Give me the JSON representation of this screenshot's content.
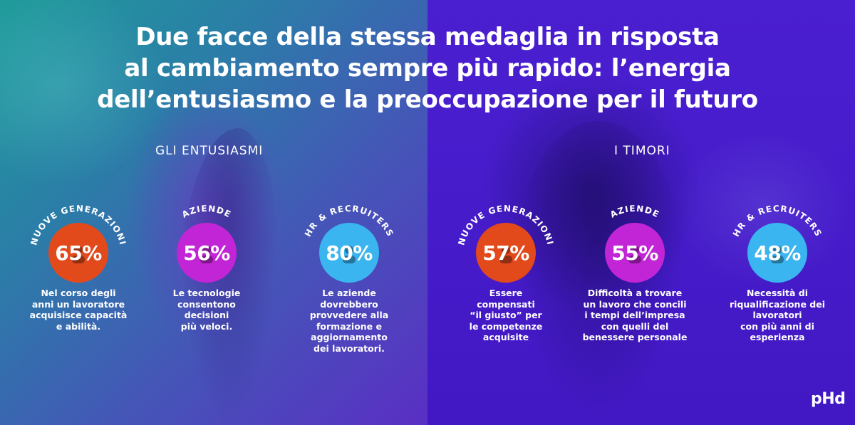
{
  "title": {
    "lines": [
      "Due facce della stessa medaglia in risposta",
      "al cambiamento sempre più rapido: l’energia",
      "dell’entusiasmo e la preoccupazione per il futuro"
    ]
  },
  "sections": {
    "left": {
      "heading": "GLI ENTUSIASMI"
    },
    "right": {
      "heading": "I TIMORI"
    }
  },
  "stats": [
    {
      "arc_label": "NUOVE GENERAZIONI",
      "value": "65%",
      "color": "#e24a1c",
      "icon": "user-icon",
      "desc_lines": [
        "Nel corso degli",
        "anni un lavoratore",
        "acquisisce capacità",
        "e abilità."
      ]
    },
    {
      "arc_label": "AZIENDE",
      "value": "56%",
      "color": "#c225d6",
      "icon": "user-icon",
      "desc_lines": [
        "Le tecnologie",
        "consentono",
        "decisioni",
        "più veloci."
      ]
    },
    {
      "arc_label": "HR & RECRUITERS",
      "value": "80%",
      "color": "#3ab5ef",
      "icon": "user-icon",
      "desc_lines": [
        "Le aziende",
        "dovrebbero",
        "provvedere alla",
        "formazione e",
        "aggiornamento",
        "dei lavoratori."
      ]
    },
    {
      "arc_label": "NUOVE GENERAZIONI",
      "value": "57%",
      "color": "#e24a1c",
      "icon": "user-icon",
      "desc_lines": [
        "Essere",
        "compensati",
        "“il giusto” per",
        "le competenze",
        "acquisite"
      ]
    },
    {
      "arc_label": "AZIENDE",
      "value": "55%",
      "color": "#c225d6",
      "icon": "user-icon",
      "desc_lines": [
        "Difficoltà a trovare",
        "un lavoro che concili",
        "i tempi dell’impresa",
        "con quelli del",
        "benessere personale"
      ]
    },
    {
      "arc_label": "HR & RECRUITERS",
      "value": "48%",
      "color": "#3ab5ef",
      "icon": "user-icon",
      "desc_lines": [
        "Necessità di",
        "riqualificazione dei",
        "lavoratori",
        "con più anni di",
        "esperienza"
      ]
    }
  ],
  "logo": "pHd"
}
